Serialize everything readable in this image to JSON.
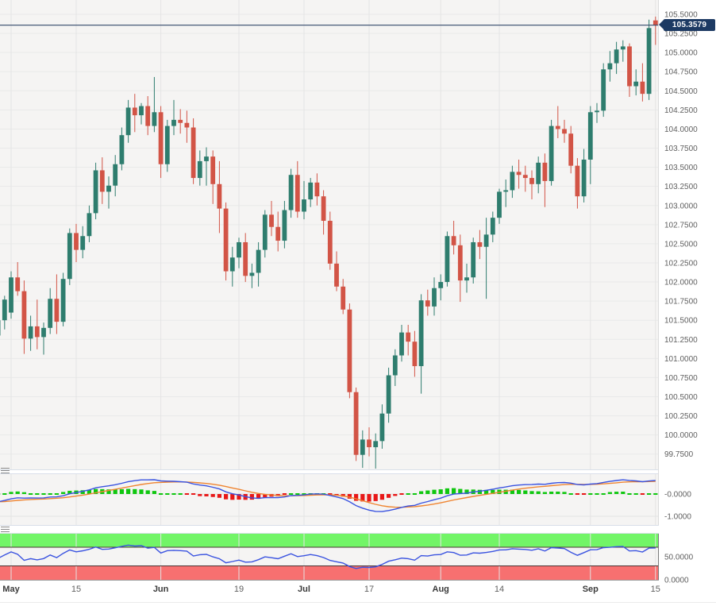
{
  "chart_data": {
    "type": "candlestick",
    "description": "Daily candlestick price chart with MACD and RSI sub-panels",
    "x_axis": {
      "ticks": [
        {
          "i": 2,
          "label": "May",
          "bold": true
        },
        {
          "i": 12,
          "label": "15",
          "bold": false
        },
        {
          "i": 25,
          "label": "Jun",
          "bold": true
        },
        {
          "i": 37,
          "label": "19",
          "bold": false
        },
        {
          "i": 47,
          "label": "Jul",
          "bold": true
        },
        {
          "i": 57,
          "label": "17",
          "bold": false
        },
        {
          "i": 68,
          "label": "Aug",
          "bold": true
        },
        {
          "i": 77,
          "label": "14",
          "bold": false
        },
        {
          "i": 91,
          "label": "Sep",
          "bold": true
        },
        {
          "i": 101,
          "label": "15",
          "bold": false
        }
      ]
    },
    "price_panel": {
      "current_price": 105.3579,
      "current_price_label": "105.3579",
      "y_tick_top_value": 105.5,
      "y_tick_step": 0.25,
      "y_tick_labels": [
        "105.5000",
        "105.2500",
        "105.0000",
        "104.7500",
        "104.5000",
        "104.2500",
        "104.0000",
        "103.7500",
        "103.5000",
        "103.2500",
        "103.0000",
        "102.7500",
        "102.5000",
        "102.2500",
        "102.0000",
        "101.7500",
        "101.5000",
        "101.2500",
        "101.0000",
        "100.7500",
        "100.5000",
        "100.2500",
        "100.0000",
        "99.7500"
      ],
      "candles": [
        [
          101.3,
          101.58,
          101.18,
          101.5
        ],
        [
          101.5,
          101.82,
          101.38,
          101.77
        ],
        [
          101.6,
          102.14,
          101.52,
          102.06
        ],
        [
          102.06,
          102.26,
          101.82,
          101.88
        ],
        [
          101.88,
          102.02,
          101.06,
          101.26
        ],
        [
          101.26,
          101.56,
          101.1,
          101.42
        ],
        [
          101.42,
          101.77,
          101.12,
          101.28
        ],
        [
          101.28,
          101.47,
          101.05,
          101.4
        ],
        [
          101.4,
          101.92,
          101.32,
          101.78
        ],
        [
          101.78,
          102.1,
          101.32,
          101.48
        ],
        [
          101.48,
          102.12,
          101.42,
          102.04
        ],
        [
          102.04,
          102.7,
          101.96,
          102.64
        ],
        [
          102.64,
          102.76,
          102.26,
          102.42
        ],
        [
          102.42,
          102.73,
          102.31,
          102.6
        ],
        [
          102.6,
          103.0,
          102.52,
          102.9
        ],
        [
          102.9,
          103.56,
          102.82,
          103.46
        ],
        [
          103.46,
          103.63,
          103.02,
          103.18
        ],
        [
          103.18,
          103.38,
          102.96,
          103.26
        ],
        [
          103.26,
          103.66,
          103.12,
          103.54
        ],
        [
          103.54,
          104.02,
          103.46,
          103.92
        ],
        [
          103.92,
          104.38,
          103.82,
          104.28
        ],
        [
          104.28,
          104.46,
          103.96,
          104.18
        ],
        [
          104.18,
          104.34,
          104.06,
          104.3
        ],
        [
          104.3,
          104.43,
          103.92,
          104.04
        ],
        [
          104.04,
          104.68,
          103.96,
          104.22
        ],
        [
          104.22,
          104.3,
          103.36,
          103.54
        ],
        [
          103.54,
          104.12,
          103.44,
          104.04
        ],
        [
          104.04,
          104.38,
          103.92,
          104.12
        ],
        [
          104.12,
          104.26,
          103.94,
          104.08
        ],
        [
          104.08,
          104.24,
          103.82,
          104.02
        ],
        [
          104.02,
          104.14,
          103.28,
          103.36
        ],
        [
          103.36,
          103.72,
          103.26,
          103.58
        ],
        [
          103.58,
          103.76,
          103.26,
          103.64
        ],
        [
          103.64,
          103.72,
          103.02,
          103.28
        ],
        [
          103.28,
          103.58,
          102.64,
          102.96
        ],
        [
          102.96,
          103.04,
          102.02,
          102.14
        ],
        [
          102.14,
          102.46,
          101.94,
          102.32
        ],
        [
          102.32,
          102.58,
          102.18,
          102.52
        ],
        [
          102.52,
          102.64,
          102.0,
          102.08
        ],
        [
          102.08,
          102.24,
          101.92,
          102.12
        ],
        [
          102.12,
          102.52,
          101.94,
          102.42
        ],
        [
          102.42,
          102.94,
          102.32,
          102.88
        ],
        [
          102.88,
          103.06,
          102.6,
          102.72
        ],
        [
          102.72,
          102.92,
          102.4,
          102.54
        ],
        [
          102.54,
          103.06,
          102.44,
          102.94
        ],
        [
          102.94,
          103.48,
          102.84,
          103.4
        ],
        [
          103.4,
          103.58,
          102.84,
          102.92
        ],
        [
          102.92,
          103.32,
          102.82,
          103.08
        ],
        [
          103.08,
          103.36,
          102.98,
          103.3
        ],
        [
          103.3,
          103.42,
          103.0,
          103.12
        ],
        [
          103.12,
          103.2,
          102.62,
          102.8
        ],
        [
          102.8,
          102.92,
          102.16,
          102.24
        ],
        [
          102.24,
          102.4,
          101.88,
          101.94
        ],
        [
          101.94,
          102.04,
          101.58,
          101.64
        ],
        [
          101.64,
          101.72,
          100.48,
          100.56
        ],
        [
          100.56,
          100.62,
          99.66,
          99.74
        ],
        [
          99.74,
          100.06,
          99.57,
          99.94
        ],
        [
          99.94,
          100.1,
          99.72,
          99.84
        ],
        [
          99.84,
          100.02,
          99.56,
          99.92
        ],
        [
          99.92,
          100.4,
          99.82,
          100.28
        ],
        [
          100.28,
          100.88,
          100.16,
          100.78
        ],
        [
          100.78,
          101.12,
          100.64,
          101.04
        ],
        [
          101.04,
          101.44,
          100.96,
          101.34
        ],
        [
          101.34,
          101.44,
          101.04,
          101.22
        ],
        [
          101.22,
          101.36,
          100.76,
          100.9
        ],
        [
          100.9,
          101.84,
          100.54,
          101.76
        ],
        [
          101.76,
          101.9,
          101.56,
          101.68
        ],
        [
          101.68,
          102.06,
          101.56,
          101.92
        ],
        [
          101.92,
          102.1,
          101.76,
          102.0
        ],
        [
          102.0,
          102.66,
          101.94,
          102.6
        ],
        [
          102.6,
          102.8,
          102.36,
          102.48
        ],
        [
          102.48,
          102.62,
          101.74,
          102.02
        ],
        [
          102.02,
          102.24,
          101.86,
          102.06
        ],
        [
          102.06,
          102.58,
          101.98,
          102.52
        ],
        [
          102.52,
          102.68,
          102.3,
          102.46
        ],
        [
          102.46,
          102.84,
          101.78,
          102.62
        ],
        [
          102.62,
          102.92,
          102.52,
          102.84
        ],
        [
          102.84,
          103.22,
          102.76,
          103.18
        ],
        [
          103.18,
          103.34,
          102.98,
          103.2
        ],
        [
          103.2,
          103.52,
          103.1,
          103.44
        ],
        [
          103.44,
          103.6,
          103.22,
          103.4
        ],
        [
          103.4,
          103.52,
          103.18,
          103.36
        ],
        [
          103.36,
          103.46,
          103.08,
          103.28
        ],
        [
          103.28,
          103.64,
          103.16,
          103.56
        ],
        [
          103.56,
          103.68,
          102.98,
          103.32
        ],
        [
          103.32,
          104.12,
          103.26,
          104.04
        ],
        [
          104.04,
          104.3,
          103.88,
          104.0
        ],
        [
          104.0,
          104.12,
          103.82,
          103.94
        ],
        [
          103.94,
          104.04,
          103.42,
          103.52
        ],
        [
          103.52,
          103.62,
          102.96,
          103.12
        ],
        [
          103.12,
          103.74,
          103.04,
          103.6
        ],
        [
          103.6,
          104.3,
          103.28,
          104.22
        ],
        [
          104.22,
          104.34,
          104.08,
          104.24
        ],
        [
          104.24,
          104.86,
          104.16,
          104.78
        ],
        [
          104.78,
          105.02,
          104.62,
          104.86
        ],
        [
          104.86,
          105.14,
          104.72,
          105.04
        ],
        [
          105.04,
          105.16,
          104.88,
          105.08
        ],
        [
          105.08,
          105.12,
          104.42,
          104.56
        ],
        [
          104.56,
          104.78,
          104.44,
          104.62
        ],
        [
          104.62,
          104.86,
          104.36,
          104.46
        ],
        [
          104.46,
          105.43,
          104.38,
          105.32
        ],
        [
          105.42,
          105.47,
          105.1,
          105.36
        ]
      ]
    },
    "macd_panel": {
      "indicator": "MACD",
      "params": {
        "fast": 12,
        "slow": 26,
        "signal": 9
      },
      "y_tick_labels": [
        {
          "label": "-0.0000",
          "value": 0
        },
        {
          "label": "-1.0000",
          "value": -1
        }
      ]
    },
    "rsi_panel": {
      "indicator": "RSI",
      "period": 14,
      "overbought": 70,
      "oversold": 30,
      "y_tick_labels": [
        {
          "label": "50.0000",
          "value": 50
        },
        {
          "label": "0.0000",
          "value": 0
        }
      ]
    }
  },
  "colors": {
    "background": "#f5f4f3",
    "grid": "#e9e9e9",
    "grid_vertical": "#e4e4e4",
    "panel_border": "#d9dfe9",
    "candle_up": "#2e7d6e",
    "candle_down": "#d25446",
    "price_line": "#34496b",
    "price_badge": "#1d3a63",
    "macd_line": "#3a53e0",
    "macd_signal": "#ef8532",
    "hist_up": "#10c710",
    "hist_down": "#e81818",
    "band_overbought": "#72f567",
    "band_oversold": "#f77070",
    "band_edge": "#4a3333",
    "rsi_line": "#3a53e0",
    "axis_text": "#606060",
    "axis_text_bold": "#3b3b3b"
  }
}
